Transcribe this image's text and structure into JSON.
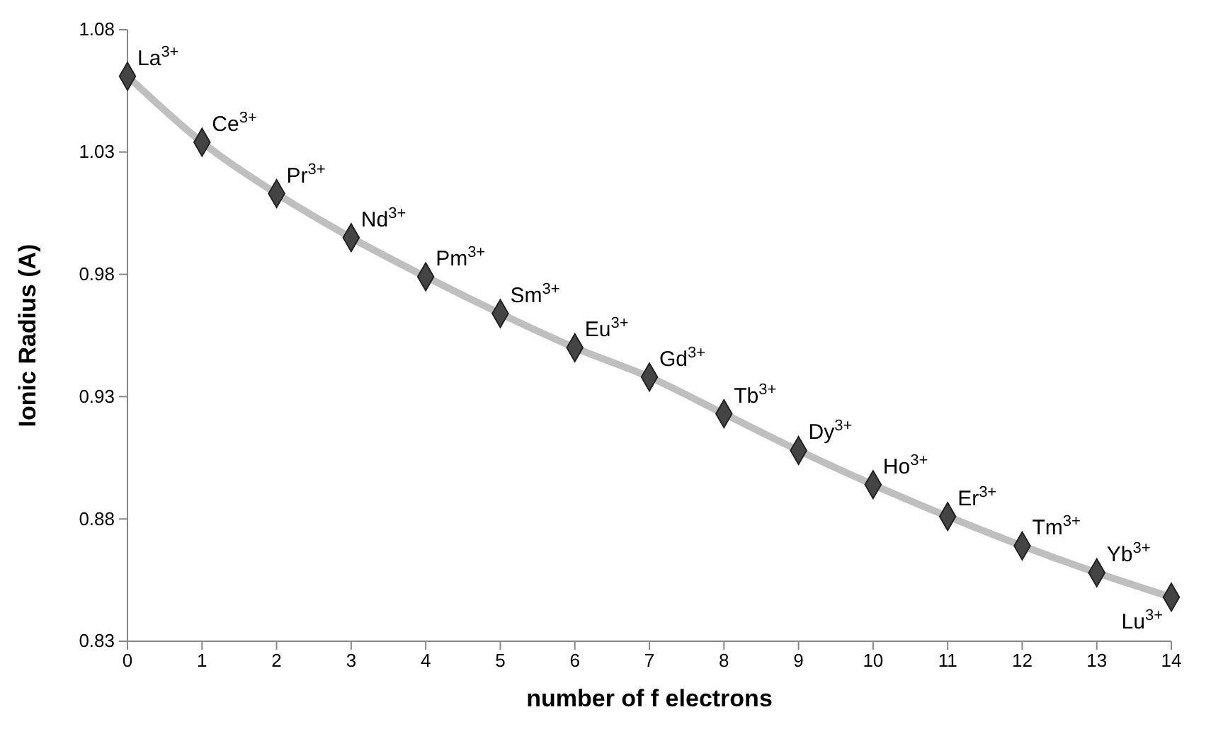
{
  "chart_data": {
    "type": "line",
    "xlabel": "number of f electrons",
    "ylabel": "Ionic Radius (A)",
    "x": [
      0,
      1,
      2,
      3,
      4,
      5,
      6,
      7,
      8,
      9,
      10,
      11,
      12,
      13,
      14
    ],
    "series": [
      {
        "color": "#bfbfbf",
        "values": [
          1.061,
          1.034,
          1.013,
          0.995,
          0.979,
          0.964,
          0.95,
          0.938,
          0.923,
          0.908,
          0.894,
          0.881,
          0.869,
          0.858,
          0.848
        ]
      }
    ],
    "xlim": [
      0,
      14
    ],
    "xticks": [
      0,
      1,
      2,
      3,
      4,
      5,
      6,
      7,
      8,
      9,
      10,
      11,
      12,
      13,
      14
    ],
    "ylim": [
      0.83,
      1.08
    ],
    "yticks": [
      {
        "value": 0.83,
        "label": "0.83"
      },
      {
        "value": 0.88,
        "label": "0.88"
      },
      {
        "value": 0.93,
        "label": "0.93"
      },
      {
        "value": 0.98,
        "label": "0.98"
      },
      {
        "value": 1.03,
        "label": "1.03"
      },
      {
        "value": 1.08,
        "label": "1.08"
      }
    ],
    "marker": "diamond",
    "line_style": "solid",
    "grid": false,
    "annotations": [
      {
        "text": "La$^{3+}$",
        "x": 0,
        "y": 1.061
      },
      {
        "text": "Ce$^{3+}$",
        "x": 1,
        "y": 1.034
      },
      {
        "text": "Pr$^{3+}$",
        "x": 2,
        "y": 1.013
      },
      {
        "text": "Nd$^{3+}$",
        "x": 3,
        "y": 0.995
      },
      {
        "text": "Pm$^{3+}$",
        "x": 4,
        "y": 0.979
      },
      {
        "text": "Sm$^{3+}$",
        "x": 5,
        "y": 0.964
      },
      {
        "text": "Eu$^{3+}$",
        "x": 6,
        "y": 0.95
      },
      {
        "text": "Gd$^{3+}$",
        "x": 7,
        "y": 0.938
      },
      {
        "text": "Tb$^{3+}$",
        "x": 8,
        "y": 0.923
      },
      {
        "text": "Dy$^{3+}$",
        "x": 9,
        "y": 0.908
      },
      {
        "text": "Ho$^{3+}$",
        "x": 10,
        "y": 0.894
      },
      {
        "text": "Er$^{3+}$",
        "x": 11,
        "y": 0.881
      },
      {
        "text": "Tm$^{3+}$",
        "x": 12,
        "y": 0.869
      },
      {
        "text": "Yb$^{3+}$",
        "x": 13,
        "y": 0.858
      },
      {
        "text": "Lu$^{3+}$",
        "x": 14,
        "y": 0.848
      }
    ]
  }
}
